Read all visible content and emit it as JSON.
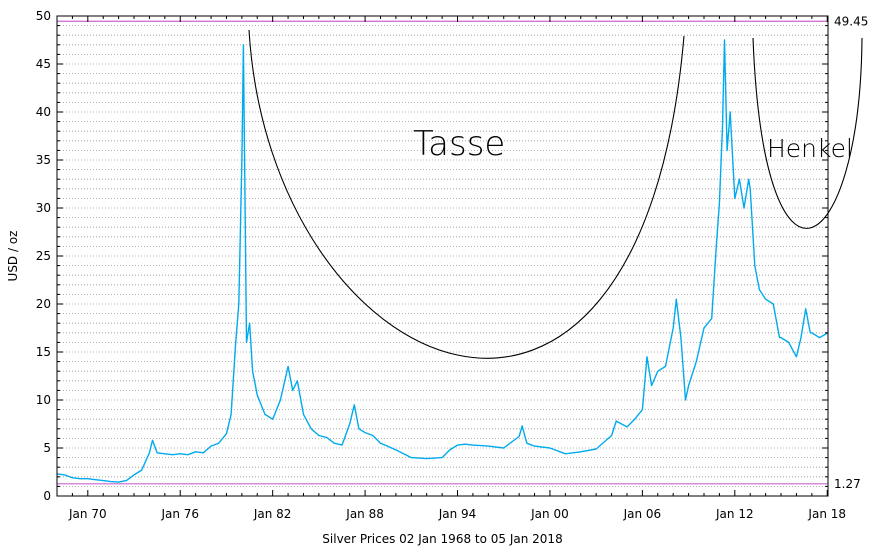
{
  "chart_data": {
    "type": "line",
    "title": "Silver Prices 02 Jan 1968 to 05 Jan 2018",
    "ylabel": "USD / oz",
    "xlabel": "",
    "xlim": [
      1968.0,
      2018.05
    ],
    "ylim": [
      0,
      50
    ],
    "grid": true,
    "legend": "none",
    "x_ticks": [
      {
        "x": 1970.0,
        "label": "Jan 70"
      },
      {
        "x": 1976.0,
        "label": "Jan 76"
      },
      {
        "x": 1982.0,
        "label": "Jan 82"
      },
      {
        "x": 1988.0,
        "label": "Jan 88"
      },
      {
        "x": 1994.0,
        "label": "Jan 94"
      },
      {
        "x": 2000.0,
        "label": "Jan 00"
      },
      {
        "x": 2006.0,
        "label": "Jan 06"
      },
      {
        "x": 2012.0,
        "label": "Jan 12"
      },
      {
        "x": 2018.0,
        "label": "Jan 18"
      }
    ],
    "y_ticks": [
      {
        "y": 0,
        "label": "0"
      },
      {
        "y": 5,
        "label": "5"
      },
      {
        "y": 10,
        "label": "10"
      },
      {
        "y": 15,
        "label": "15"
      },
      {
        "y": 20,
        "label": "20"
      },
      {
        "y": 25,
        "label": "25"
      },
      {
        "y": 30,
        "label": "30"
      },
      {
        "y": 35,
        "label": "35"
      },
      {
        "y": 40,
        "label": "40"
      },
      {
        "y": 45,
        "label": "45"
      },
      {
        "y": 50,
        "label": "50"
      }
    ],
    "reference_lines": [
      {
        "y": 49.45,
        "label": "49.45",
        "color": "#cc66cc"
      },
      {
        "y": 1.27,
        "label": "1.27",
        "color": "#cc66cc"
      }
    ],
    "series": [
      {
        "color": "#00aaee",
        "x": [
          1968.0,
          1968.5,
          1969.0,
          1969.5,
          1970.0,
          1970.5,
          1971.0,
          1971.5,
          1972.0,
          1972.5,
          1973.0,
          1973.5,
          1974.0,
          1974.2,
          1974.5,
          1975.0,
          1975.5,
          1976.0,
          1976.5,
          1977.0,
          1977.5,
          1978.0,
          1978.5,
          1979.0,
          1979.3,
          1979.6,
          1979.8,
          1980.0,
          1980.1,
          1980.3,
          1980.5,
          1980.7,
          1981.0,
          1981.5,
          1982.0,
          1982.5,
          1983.0,
          1983.3,
          1983.6,
          1984.0,
          1984.5,
          1985.0,
          1985.5,
          1986.0,
          1986.5,
          1987.0,
          1987.3,
          1987.6,
          1988.0,
          1988.5,
          1989.0,
          1990.0,
          1991.0,
          1992.0,
          1993.0,
          1993.5,
          1994.0,
          1994.5,
          1995.0,
          1996.0,
          1997.0,
          1998.0,
          1998.2,
          1998.5,
          1999.0,
          2000.0,
          2001.0,
          2002.0,
          2003.0,
          2004.0,
          2004.3,
          2005.0,
          2005.5,
          2006.0,
          2006.3,
          2006.6,
          2007.0,
          2007.5,
          2008.0,
          2008.2,
          2008.5,
          2008.8,
          2009.0,
          2009.5,
          2010.0,
          2010.5,
          2010.8,
          2011.0,
          2011.2,
          2011.33,
          2011.5,
          2011.7,
          2012.0,
          2012.3,
          2012.6,
          2012.9,
          2013.0,
          2013.3,
          2013.6,
          2014.0,
          2014.5,
          2014.9,
          2015.0,
          2015.5,
          2016.0,
          2016.3,
          2016.6,
          2016.9,
          2017.0,
          2017.5,
          2018.05
        ],
        "y": [
          2.3,
          2.2,
          1.9,
          1.8,
          1.8,
          1.7,
          1.6,
          1.5,
          1.45,
          1.6,
          2.2,
          2.7,
          4.5,
          5.8,
          4.5,
          4.4,
          4.3,
          4.4,
          4.3,
          4.6,
          4.5,
          5.2,
          5.5,
          6.5,
          8.5,
          16.0,
          20.0,
          35.0,
          47.0,
          16.0,
          18.0,
          13.0,
          10.5,
          8.5,
          8.0,
          10.0,
          13.5,
          11.0,
          12.0,
          8.5,
          7.0,
          6.3,
          6.1,
          5.5,
          5.3,
          7.5,
          9.5,
          7.0,
          6.6,
          6.3,
          5.5,
          4.8,
          4.0,
          3.9,
          4.0,
          4.8,
          5.3,
          5.4,
          5.3,
          5.2,
          5.0,
          6.2,
          7.3,
          5.5,
          5.2,
          5.0,
          4.4,
          4.6,
          4.9,
          6.3,
          7.8,
          7.2,
          8.0,
          9.0,
          14.5,
          11.5,
          13.0,
          13.5,
          17.5,
          20.5,
          16.5,
          10.0,
          11.5,
          14.0,
          17.5,
          18.5,
          26.0,
          30.5,
          38.5,
          47.5,
          36.0,
          40.0,
          31.0,
          33.0,
          30.0,
          33.0,
          32.0,
          24.0,
          21.5,
          20.5,
          20.0,
          16.5,
          16.5,
          16.0,
          14.5,
          16.5,
          19.5,
          17.0,
          17.0,
          16.5,
          17.0
        ]
      }
    ]
  },
  "annotations": {
    "cup_label": "Tasse",
    "handle_label": "Henkel"
  }
}
